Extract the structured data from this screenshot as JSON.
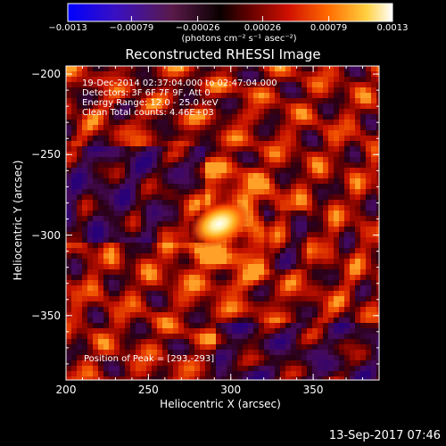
{
  "chart_data": {
    "type": "heatmap",
    "title": "Reconstructed RHESSI Image",
    "xlabel": "Heliocentric X (arcsec)",
    "ylabel": "Heliocentric Y (arcsec)",
    "xlim": [
      200,
      390
    ],
    "ylim": [
      -390,
      -195
    ],
    "xticks": [
      "200",
      "250",
      "300",
      "350"
    ],
    "yticks": [
      "-200",
      "-250",
      "-300",
      "-350"
    ],
    "xtick_values": [
      200,
      250,
      300,
      350
    ],
    "ytick_values": [
      -200,
      -250,
      -300,
      -350
    ],
    "colorbar": {
      "ticks": [
        "-0.0013",
        "-0.00079",
        "-0.00026",
        "0.00026",
        "0.00079",
        "0.0013"
      ],
      "tick_values": [
        -0.0013,
        -0.00079,
        -0.00026,
        0.00026,
        0.00079,
        0.0013
      ],
      "range": [
        -0.0013,
        0.0013
      ],
      "unit_label": "(photons cm⁻² s⁻¹ asec⁻²)"
    },
    "annotations": [
      "19-Dec-2014 02:37:04.000 to 02:47:04.000",
      "Detectors: 3F 6F 7F 9F, Att 0",
      "Energy Range: 12.0 - 25.0 keV",
      "Clean     Total counts: 4.46E+03"
    ],
    "peak_label": "Position of Peak = [293,-293]",
    "peak": [
      293,
      -293
    ]
  },
  "footer": {
    "timestamp": "13-Sep-2017 07:46"
  }
}
